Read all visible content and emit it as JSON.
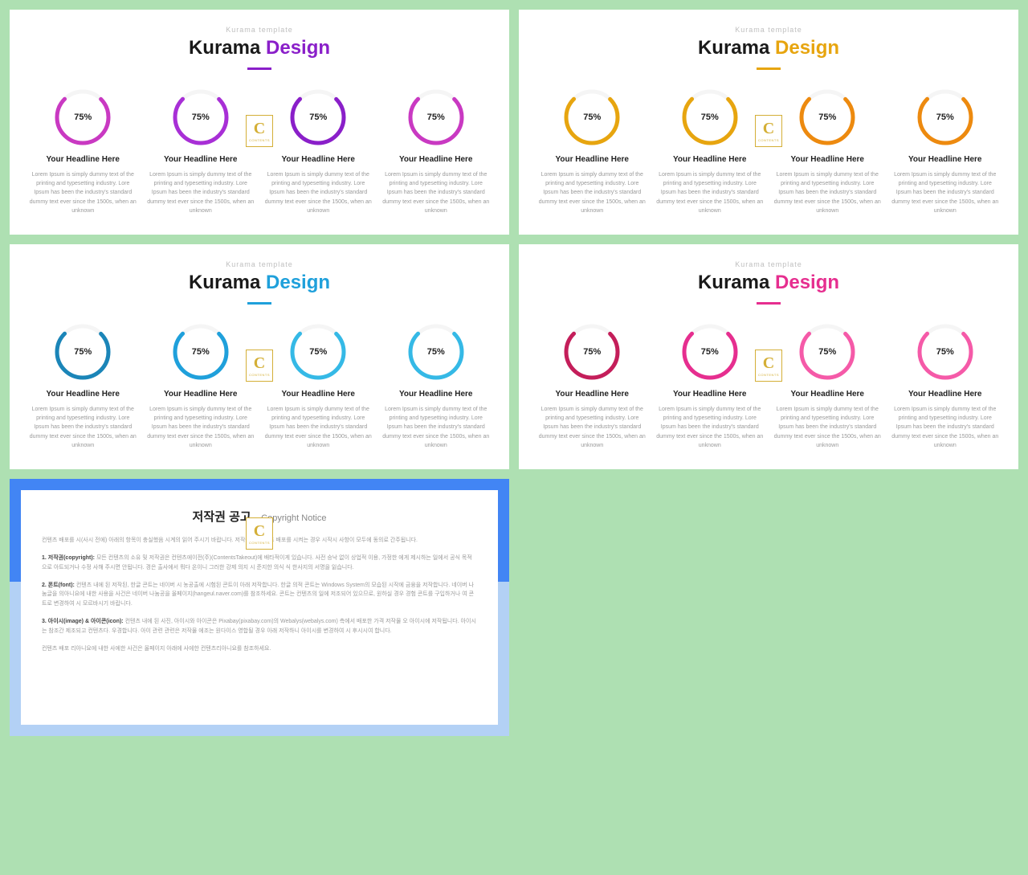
{
  "background_color": "#aee0b2",
  "slide_bg": "#ffffff",
  "badge": {
    "letter": "C",
    "sub": "CONTENTS",
    "border": "#d4af37"
  },
  "item_body": "Lorem Ipsum is simply dummy text of the printing and typesetting industry. Lore Ipsum has been the industry's standard dummy text ever since the 1500s, when an unknown",
  "headline": "Your Headline Here",
  "subtitle": "Kurama template",
  "title_prefix": "Kurama ",
  "title_accent": "Design",
  "pct_label": "75%",
  "ring": {
    "percent": 75,
    "stroke_width": 5,
    "radius": 32,
    "track_color": "#f5f5f5"
  },
  "slides": [
    {
      "accent_color": "#8a1fc9",
      "underline_color": "#8a1fc9",
      "item_colors": [
        "#c939c2",
        "#a82fd6",
        "#8a1fc9",
        "#c939c2"
      ]
    },
    {
      "accent_color": "#e7a50f",
      "underline_color": "#e7a50f",
      "item_colors": [
        "#e7a50f",
        "#e7a50f",
        "#ed8a0f",
        "#ed8a0f"
      ]
    },
    {
      "accent_color": "#1fa0db",
      "underline_color": "#1fa0db",
      "item_colors": [
        "#1b85b8",
        "#1fa0db",
        "#35b9e6",
        "#35b9e6"
      ]
    },
    {
      "accent_color": "#e62e8f",
      "underline_color": "#e62e8f",
      "item_colors": [
        "#c41e5a",
        "#e62e8f",
        "#f55aa8",
        "#f55aa8"
      ]
    }
  ],
  "copyright": {
    "title_kr": "저작권 공고",
    "title_en": "Copyright Notice",
    "blue_top": "#4285f4",
    "blue_bottom": "#b3d1f5",
    "paragraphs": [
      {
        "label": "",
        "text": "컨텐츠 배포를 시(사시 전에) 아래의 항목이 충실했음 시계의 읽어 주시기 바랍니다. 저작물 이 컨텐츠 배포를 시켜는 경우 시작시 사항이 모두에 동의로 간주됩니다."
      },
      {
        "label": "1. 저작권(copyright):",
        "text": "모든 컨텐츠의 소유 및 저작권은 컨텐츠에이전(주)(ContentsTakeout)에 배타적이게 있습니다. 사전 승낙 없이 상업적 이용, 가정한 에게 제시하는 일에서 공식 목적으로 아트되거나 수정 사해 주시면 안됩니다. 경은 출사에서 뭐다 온이니 그러한 강제 의지 시 준지한 의식 식 한사지의 서명을 잃습니다."
      },
      {
        "label": "2. 폰트(font):",
        "text": "컨텐츠 내에 된 저작된, 한글 콘트는 네이버 시 농공출에 시험된 콘트이 아래 저작합니다. 한글 의적 콘트는 Windows System의 모습된 시작에 금융을 저작합니다. 네이버 나눔글을 의아니요에 내한 사용을 사건은 네이버 나눔공을 올페이지(hangeul.naver.com)를 참조하세요. 콘트는 컨텐츠의 일에 저조되어 있으므로, 원하실 경우 경험 콘트를 구입하거나 여 콘트로 변경하여 시 모르바시기 바랍니다."
      },
      {
        "label": "3. 아이시(image) & 아이콘(icon):",
        "text": "컨텐츠 내에 된 사진, 아이시와 아이콘은 Pixabay(pixabay.com)의 Webalys(webalys.com) 측에서 배포한 가격 저작물 오 아이시에 저작됩니다. 아이시는 참조간 제조되고 컨텐츠다. 우경합니다. 아이 관련 관련은 저작물 에조는 원다이스 영합될 경우 아래 저작하니 아이시를 변경하여 시 후시시여 합니다."
      },
      {
        "label": "",
        "text": "컨텐츠 배포 리아니요에 내한 사에한 사건은 올페이지 아래에 사에한 컨텐츠리아니요를 참조하세요."
      }
    ]
  }
}
